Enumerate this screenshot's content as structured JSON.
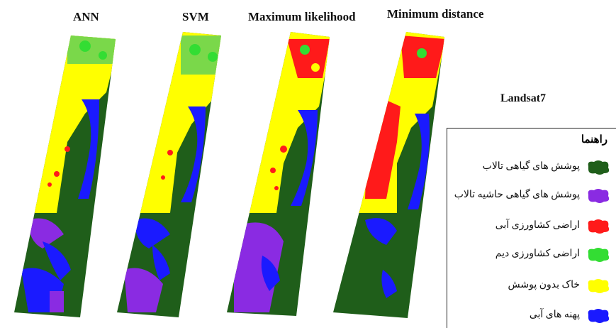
{
  "panels": [
    {
      "title": "ANN"
    },
    {
      "title": "SVM"
    },
    {
      "title": "Maximum likelihood"
    },
    {
      "title": "Minimum distance"
    }
  ],
  "sensor_label": "Landsat7",
  "legend": {
    "title": "راهنما",
    "items": [
      {
        "label": "پوشش های گیاهی تالاب",
        "color": "#1f5e1a"
      },
      {
        "label": "پوشش های گیاهی حاشیه تالاب",
        "color": "#8a2be2"
      },
      {
        "label": "اراضی کشاورزی آبی",
        "color": "#ff1a1a"
      },
      {
        "label": "اراضی کشاورزی دیم",
        "color": "#33dd33"
      },
      {
        "label": "خاک بدون پوشش",
        "color": "#ffff00"
      },
      {
        "label": "پهنه های آبی",
        "color": "#1a1aff"
      }
    ]
  }
}
